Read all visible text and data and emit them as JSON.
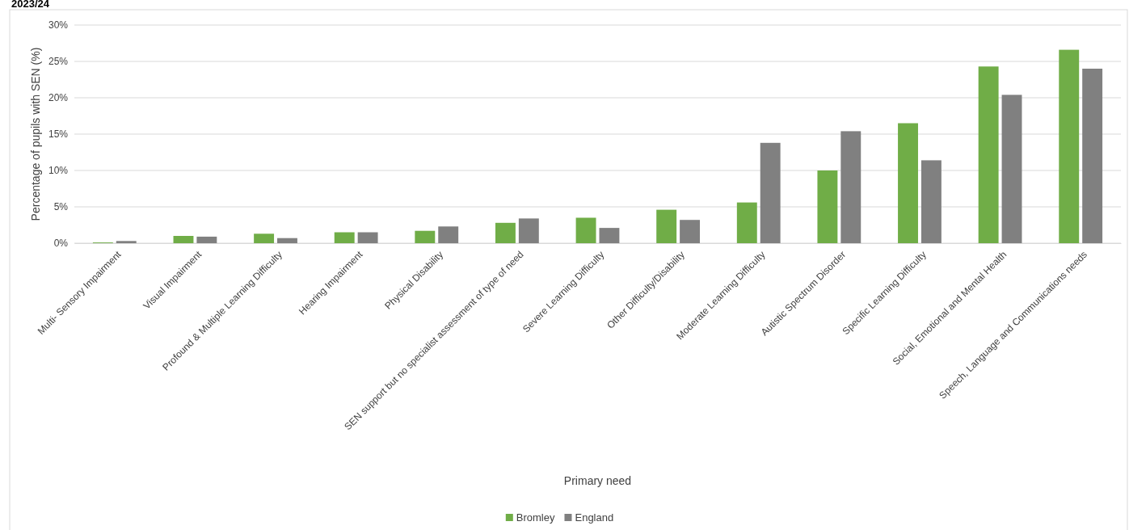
{
  "chart_data": {
    "type": "bar",
    "title": "2023/24",
    "xlabel": "Primary need",
    "ylabel": "Percentage of pupils with SEN (%)",
    "categories": [
      "Multi- Sensory Impairment",
      "Visual Impairment",
      "Profound & Multiple Learning Difficulty",
      "Hearing Impairment",
      "Physical Disability",
      "SEN support but no specialist assessment of type of need",
      "Severe Learning Difficulty",
      "Other Difficulty/Disability",
      "Moderate Learning Difficulty",
      "Autistic Spectrum Disorder",
      "Specific Learning Difficulty",
      "Social, Emotional and Mental Health",
      "Speech, Language and Communications needs"
    ],
    "series": [
      {
        "name": "Bromley",
        "color": "#70ad47",
        "values": [
          0.1,
          1.0,
          1.3,
          1.5,
          1.7,
          2.8,
          3.5,
          4.6,
          5.6,
          10.0,
          16.5,
          24.3,
          26.6
        ]
      },
      {
        "name": "England",
        "color": "#808080",
        "values": [
          0.3,
          0.9,
          0.7,
          1.5,
          2.3,
          3.4,
          2.1,
          3.2,
          13.8,
          15.4,
          11.4,
          20.4,
          24.0
        ]
      }
    ],
    "ylim": [
      0,
      30
    ],
    "yticks": [
      {
        "value": 0,
        "label": "0%"
      },
      {
        "value": 5,
        "label": "5%"
      },
      {
        "value": 10,
        "label": "10%"
      },
      {
        "value": 15,
        "label": "15%"
      },
      {
        "value": 20,
        "label": "20%"
      },
      {
        "value": 25,
        "label": "25%"
      },
      {
        "value": 30,
        "label": "30%"
      }
    ],
    "grid": "y",
    "legend": "bottom"
  }
}
